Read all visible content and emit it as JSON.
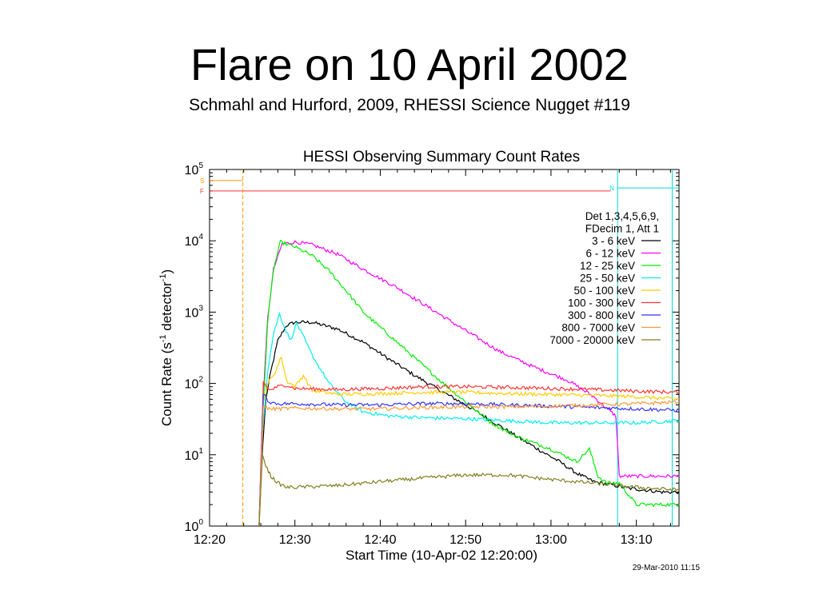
{
  "slide": {
    "title": "Flare on 10 April 2002",
    "subtitle": "Schmahl and Hurford, 2009, RHESSI Science Nugget #119"
  },
  "chart_data": {
    "type": "line",
    "title": "HESSI Observing Summary Count Rates",
    "xlabel": "Start Time (10-Apr-02 12:20:00)",
    "ylabel_main": "Count Rate (s",
    "ylabel_sup1": "-1",
    "ylabel_mid": " detector",
    "ylabel_sup2": "-1",
    "ylabel_end": ")",
    "yscale": "log",
    "xlim": [
      0,
      55
    ],
    "ylim": [
      1,
      100000
    ],
    "x_ticks": [
      0,
      10,
      20,
      30,
      40,
      50
    ],
    "x_tick_labels": [
      "12:20",
      "12:30",
      "12:40",
      "12:50",
      "13:00",
      "13:10"
    ],
    "y_ticks": [
      1,
      10,
      100,
      1000,
      10000,
      100000
    ],
    "y_tick_base": "10",
    "y_tick_exponents": [
      "0",
      "1",
      "2",
      "3",
      "4",
      "5"
    ],
    "legend_header": [
      "Det 1,3,4,5,6,9,",
      "FDecim 1, Att 1"
    ],
    "legend_position": "top-right",
    "footer_date": "29-Mar-2010 11:15",
    "flags": [
      {
        "label": "S",
        "color": "#ff9900",
        "level": 70000,
        "x_start": 0,
        "x_end": 3.9
      },
      {
        "label": "F",
        "color": "#ff3333",
        "level": 50000,
        "x_start": 0,
        "x_end": 47
      },
      {
        "label": "N",
        "color": "#00dddd",
        "level": 55000,
        "x_start": 47.8,
        "x_end": 55
      }
    ],
    "markers": [
      {
        "x": 3.9,
        "color": "#ff9900",
        "style": "dashed"
      },
      {
        "x": 47.8,
        "color": "#00dddd",
        "style": "solid"
      },
      {
        "x": 54.2,
        "color": "#00dddd",
        "style": "solid"
      }
    ],
    "series": [
      {
        "name": "3 - 6 keV",
        "color": "#000000",
        "x": [
          5.8,
          6.2,
          6.6,
          7.2,
          8,
          9,
          10,
          12,
          15,
          18,
          21,
          24,
          27,
          30,
          33,
          36,
          39,
          41,
          43,
          45,
          47,
          49,
          51,
          53,
          55
        ],
        "y": [
          1,
          12,
          60,
          150,
          400,
          650,
          720,
          720,
          580,
          380,
          220,
          130,
          80,
          50,
          30,
          18,
          11,
          8,
          5.5,
          4.2,
          3.8,
          3.4,
          3.2,
          3,
          3
        ]
      },
      {
        "name": "6 - 12 keV",
        "color": "#ff00ff",
        "x": [
          5.8,
          6.2,
          6.8,
          7.5,
          8.5,
          10,
          12,
          15,
          18,
          22,
          26,
          30,
          34,
          38,
          42,
          45,
          47,
          47.6,
          48,
          50,
          52,
          55
        ],
        "y": [
          1,
          40,
          800,
          4000,
          9000,
          9600,
          8800,
          6500,
          4000,
          2200,
          1100,
          550,
          280,
          170,
          110,
          65,
          40,
          35,
          5,
          5,
          5,
          5
        ]
      },
      {
        "name": "12 - 25 keV",
        "color": "#00ee00",
        "x": [
          5.8,
          6.2,
          6.8,
          7.5,
          8.3,
          9,
          10,
          12,
          14,
          16,
          18,
          21,
          24,
          27,
          30,
          33,
          36,
          40,
          43,
          44.5,
          45.5,
          46.5,
          48,
          50,
          52,
          55
        ],
        "y": [
          1,
          30,
          700,
          4000,
          9600,
          9000,
          8200,
          6200,
          3800,
          2000,
          1000,
          480,
          230,
          110,
          55,
          28,
          18,
          12,
          8,
          12,
          5,
          4,
          4,
          2,
          2,
          2
        ]
      },
      {
        "name": "25 - 50 keV",
        "color": "#00eeee",
        "x": [
          5.8,
          6.2,
          6.8,
          7.5,
          8.2,
          8.8,
          9.5,
          10.2,
          11,
          12,
          14,
          16,
          18,
          21,
          25,
          30,
          35,
          40,
          45,
          50,
          55
        ],
        "y": [
          1,
          20,
          150,
          500,
          950,
          600,
          400,
          700,
          450,
          250,
          100,
          55,
          40,
          35,
          33,
          32,
          30,
          28,
          28,
          28,
          30
        ]
      },
      {
        "name": "50 - 100 keV",
        "color": "#ffcc00",
        "x": [
          5.8,
          6.3,
          7,
          7.8,
          8.4,
          9,
          10,
          11,
          12,
          15,
          20,
          25,
          30,
          35,
          40,
          45,
          50,
          55
        ],
        "y": [
          1,
          55,
          110,
          150,
          240,
          110,
          90,
          130,
          80,
          70,
          72,
          75,
          75,
          72,
          70,
          68,
          65,
          60
        ]
      },
      {
        "name": "100 - 300 keV",
        "color": "#ff3333",
        "x": [
          5.8,
          6.3,
          7,
          8,
          9,
          10,
          15,
          20,
          25,
          30,
          35,
          40,
          45,
          50,
          55
        ],
        "y": [
          1,
          105,
          80,
          90,
          95,
          85,
          82,
          85,
          90,
          90,
          88,
          85,
          82,
          78,
          75
        ]
      },
      {
        "name": "300 - 800 keV",
        "color": "#3333ff",
        "x": [
          5.8,
          6.3,
          7,
          8,
          10,
          15,
          20,
          25,
          30,
          35,
          40,
          45,
          50,
          55
        ],
        "y": [
          1,
          70,
          55,
          52,
          52,
          50,
          50,
          52,
          52,
          50,
          48,
          46,
          44,
          42
        ]
      },
      {
        "name": "800 - 7000 keV",
        "color": "#ff9933",
        "x": [
          5.8,
          6.3,
          7,
          8,
          10,
          15,
          20,
          25,
          30,
          35,
          40,
          45,
          50,
          55
        ],
        "y": [
          1,
          48,
          44,
          44,
          45,
          44,
          44,
          46,
          47,
          47,
          48,
          50,
          52,
          55
        ]
      },
      {
        "name": "7000 - 20000 keV",
        "color": "#808020",
        "x": [
          5.8,
          6.2,
          6.6,
          7.2,
          8,
          9,
          10,
          15,
          20,
          25,
          30,
          35,
          40,
          45,
          50,
          55
        ],
        "y": [
          1,
          10,
          7,
          5,
          4,
          3.5,
          3.5,
          3.7,
          4.2,
          4.7,
          5.2,
          5.2,
          4.5,
          4,
          3.5,
          3.2
        ]
      }
    ]
  }
}
